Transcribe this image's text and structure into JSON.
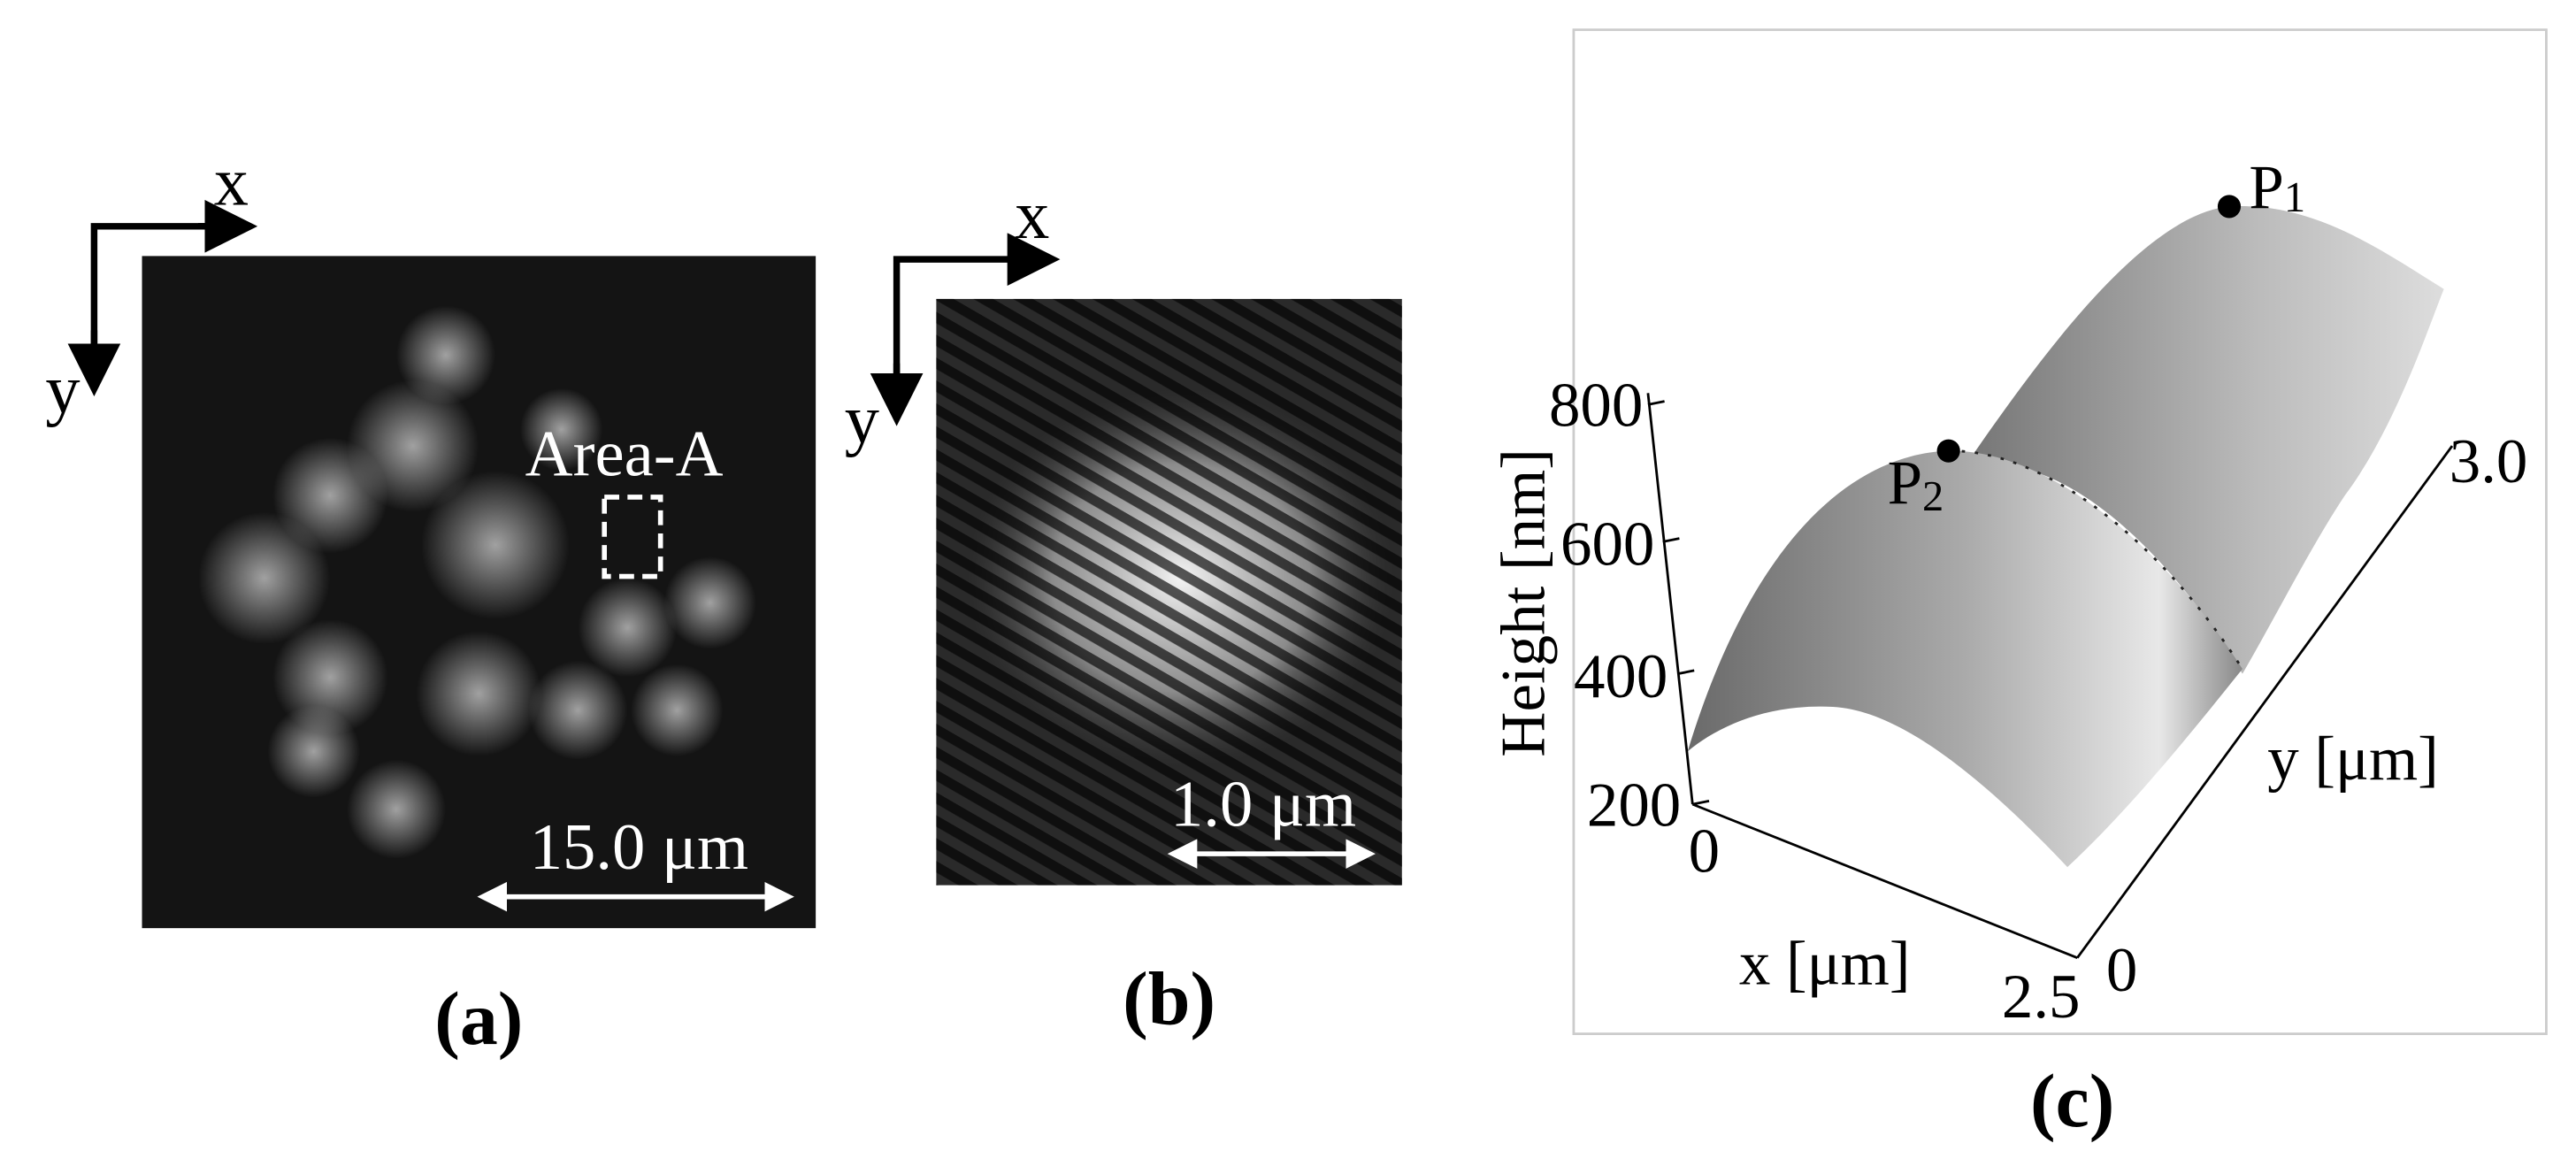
{
  "panels": [
    {
      "label": "(a)",
      "axes": {
        "x": "x",
        "y": "y"
      },
      "region": "Area-A",
      "scale_bar": "15.0 μm"
    },
    {
      "label": "(b)",
      "axes": {
        "x": "x",
        "y": "y"
      },
      "scale_bar": "1.0 μm"
    },
    {
      "label": "(c)",
      "z_axis": {
        "title": "Height [nm]",
        "ticks": [
          "800",
          "600",
          "400",
          "200"
        ]
      },
      "x_axis": {
        "title": "x [μm]",
        "ticks": [
          "0",
          "2.5"
        ]
      },
      "y_axis": {
        "title": "y [μm]",
        "ticks": [
          "0",
          "3.0"
        ]
      },
      "points": [
        {
          "letter": "P",
          "subscript": "1"
        },
        {
          "letter": "P",
          "subscript": "2"
        }
      ]
    }
  ]
}
